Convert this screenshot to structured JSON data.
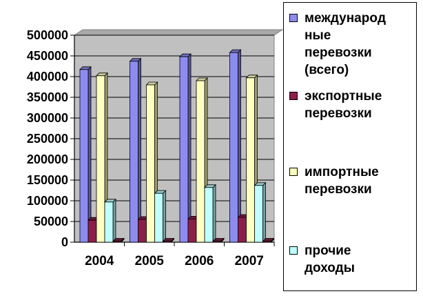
{
  "chart_data": {
    "type": "bar",
    "categories": [
      "2004",
      "2005",
      "2006",
      "2007"
    ],
    "series": [
      {
        "name": "международные перевозки (всего)",
        "values": [
          417000,
          437000,
          448000,
          458000
        ],
        "color": "#8c8cf0"
      },
      {
        "name": "экспортные перевозки",
        "values": [
          53000,
          55000,
          56000,
          60000
        ],
        "color": "#8b1f4a"
      },
      {
        "name": "импортные перевозки",
        "values": [
          402000,
          380000,
          390000,
          397000
        ],
        "color": "#ffffc0"
      },
      {
        "name": "прочие доходы",
        "values": [
          97000,
          118000,
          132000,
          137000
        ],
        "color": "#c0ffff"
      },
      {
        "name": "",
        "values": [
          0,
          0,
          0,
          0
        ],
        "color": "#7a1f3d"
      }
    ],
    "y_ticks": [
      "0",
      "50000",
      "100000",
      "150000",
      "200000",
      "250000",
      "300000",
      "350000",
      "400000",
      "450000",
      "500000"
    ],
    "ylim": [
      0,
      500000
    ],
    "grid": true,
    "legend_position": "right",
    "plot_background": "#c0c0c0"
  },
  "legend": {
    "items": [
      {
        "label": "междунарoд\nные\nперевозки\n(всего)",
        "color": "#8c8cf0"
      },
      {
        "label": "экспортные\nперевозки",
        "color": "#8b1f4a"
      },
      {
        "label": "импортные\nперевозки",
        "color": "#ffffc0"
      },
      {
        "label": "прочие\nдоходы",
        "color": "#c0ffff"
      }
    ]
  }
}
